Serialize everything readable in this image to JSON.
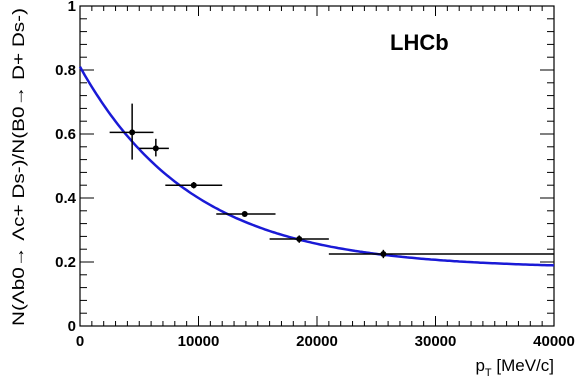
{
  "chart_data": {
    "type": "scatter",
    "brand_label": "LHCb",
    "xlabel_main": "p",
    "xlabel_sub": "T",
    "xlabel_unit": " [MeV/c]",
    "ylabel_text": "N(Λb0→ Λc+ Ds-)/N(B0→ D+ Ds-)",
    "xlim": [
      0,
      40000
    ],
    "ylim": [
      0,
      1
    ],
    "x_ticks": [
      0,
      10000,
      20000,
      30000,
      40000
    ],
    "x_tick_labels": [
      "0",
      "10000",
      "20000",
      "30000",
      "40000"
    ],
    "y_ticks": [
      0,
      0.2,
      0.4,
      0.6,
      0.8,
      1
    ],
    "y_tick_labels": [
      "0",
      "0.2",
      "0.4",
      "0.6",
      "0.8",
      "1"
    ],
    "points": [
      {
        "x": 4400,
        "x_low": 2500,
        "x_high": 6200,
        "y": 0.605,
        "y_low": 0.52,
        "y_high": 0.695
      },
      {
        "x": 6400,
        "x_low": 5000,
        "x_high": 7500,
        "y": 0.555,
        "y_low": 0.53,
        "y_high": 0.585
      },
      {
        "x": 9600,
        "x_low": 7200,
        "x_high": 12000,
        "y": 0.44,
        "y_low": 0.43,
        "y_high": 0.45
      },
      {
        "x": 13900,
        "x_low": 11500,
        "x_high": 16500,
        "y": 0.35,
        "y_low": 0.345,
        "y_high": 0.356
      },
      {
        "x": 18500,
        "x_low": 16000,
        "x_high": 21000,
        "y": 0.272,
        "y_low": 0.26,
        "y_high": 0.283
      },
      {
        "x": 25600,
        "x_low": 21000,
        "x_high": 40000,
        "y": 0.225,
        "y_low": 0.212,
        "y_high": 0.238
      }
    ],
    "fit": {
      "type": "exponential",
      "color": "#1a1ad6",
      "a": 0.18,
      "b": 0.63,
      "tau": 9500
    }
  }
}
